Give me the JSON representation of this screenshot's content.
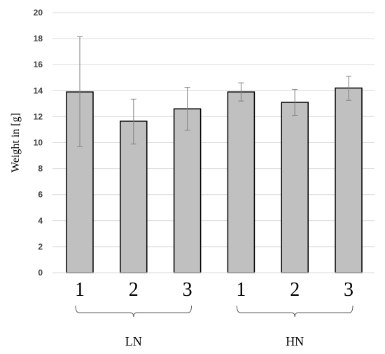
{
  "chart_data": {
    "type": "bar",
    "ylabel": "Weight in [g]",
    "ylim": [
      0,
      20
    ],
    "yticks": [
      0,
      2,
      4,
      6,
      8,
      10,
      12,
      14,
      16,
      18,
      20
    ],
    "grid": true,
    "categories": [
      "1",
      "2",
      "3",
      "1",
      "2",
      "3"
    ],
    "groups": [
      {
        "label": "LN",
        "indices": [
          0,
          1,
          2
        ]
      },
      {
        "label": "HN",
        "indices": [
          3,
          4,
          5
        ]
      }
    ],
    "values": [
      13.9,
      11.65,
      12.6,
      13.9,
      13.1,
      14.2
    ],
    "error_low": [
      9.7,
      9.9,
      10.95,
      13.2,
      12.1,
      13.25
    ],
    "error_high": [
      18.15,
      13.35,
      14.25,
      14.6,
      14.1,
      15.1
    ],
    "colors": {
      "bar_fill": "#c0c0c0",
      "bar_stroke": "#000000",
      "grid": "#d9d9d9",
      "error": "#7f7f7f",
      "brace": "#595959"
    }
  }
}
